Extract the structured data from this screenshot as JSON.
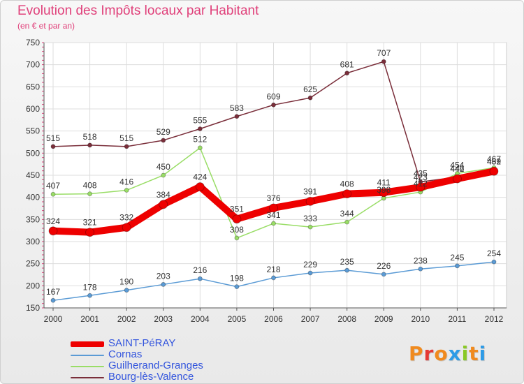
{
  "header": {
    "title": "Evolution des Impôts locaux par Habitant",
    "subtitle": "(en € et par an)"
  },
  "logo": {
    "letters": [
      "P",
      "r",
      "o",
      "x",
      "i",
      "t",
      "i"
    ],
    "colors": [
      "#f08a1e",
      "#e53935",
      "#f08a1e",
      "#2e9be6",
      "#8ac926",
      "#f08a1e",
      "#2e9be6"
    ]
  },
  "chart_data": {
    "type": "line",
    "title": "Evolution des Impôts locaux par Habitant",
    "subtitle": "(en € et par an)",
    "xlabel": "",
    "ylabel": "",
    "x": [
      "2000",
      "2001",
      "2002",
      "2003",
      "2004",
      "2005",
      "2006",
      "2007",
      "2008",
      "2009",
      "2010",
      "2011",
      "2012"
    ],
    "ylim": [
      150,
      750
    ],
    "yticks": [
      150,
      200,
      250,
      300,
      350,
      400,
      450,
      500,
      550,
      600,
      650,
      700,
      750
    ],
    "grid": true,
    "legend_position": "bottom-left",
    "series": [
      {
        "name": "SAINT-PéRAY",
        "color": "#ee0000",
        "values": [
          324,
          321,
          332,
          384,
          424,
          351,
          376,
          391,
          408,
          411,
          423,
          442,
          459
        ],
        "labels": [
          "324",
          "321",
          "332",
          "384",
          "424",
          "351",
          "376",
          "391",
          "408",
          "411",
          "423",
          "442",
          "459"
        ]
      },
      {
        "name": "Cornas",
        "color": "#5b9bd5",
        "values": [
          167,
          178,
          190,
          203,
          216,
          198,
          218,
          229,
          235,
          226,
          238,
          245,
          254
        ],
        "labels": [
          "167",
          "178",
          "190",
          "203",
          "216",
          "198",
          "218",
          "229",
          "235",
          "226",
          "238",
          "245",
          "254"
        ]
      },
      {
        "name": "Guilherand-Granges",
        "color": "#99dd66",
        "values": [
          407,
          408,
          416,
          450,
          512,
          308,
          341,
          333,
          344,
          398,
          412,
          454,
          467
        ],
        "labels": [
          "407",
          "408",
          "416",
          "450",
          "512",
          "308",
          "341",
          "333",
          "344",
          "398",
          "412",
          "454",
          "467"
        ]
      },
      {
        "name": "Bourg-lès-Valence",
        "color": "#7a2e3a",
        "values": [
          515,
          518,
          515,
          529,
          555,
          583,
          609,
          625,
          681,
          707,
          435,
          446,
          462
        ],
        "labels": [
          "515",
          "518",
          "515",
          "529",
          "555",
          "583",
          "609",
          "625",
          "681",
          "707",
          "435",
          "446",
          "462"
        ]
      }
    ]
  }
}
